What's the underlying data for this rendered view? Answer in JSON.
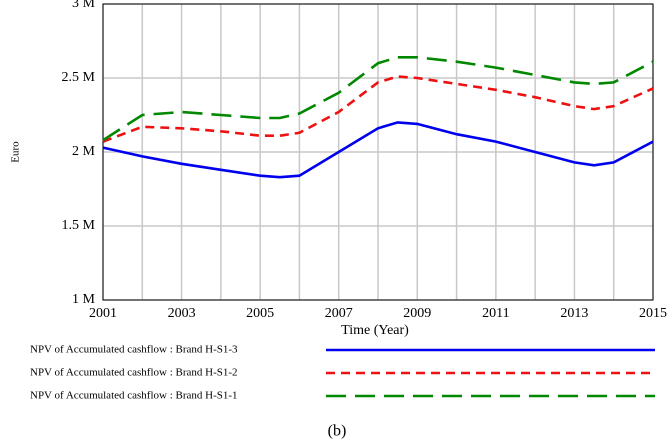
{
  "chart_data": {
    "type": "line",
    "x_label": "Time (Year)",
    "y_label": "Euro",
    "caption": "(b)",
    "x": [
      2001,
      2002,
      2003,
      2004,
      2005,
      2005.5,
      2006,
      2007,
      2008,
      2008.5,
      2009,
      2010,
      2011,
      2012,
      2013,
      2013.5,
      2014,
      2015
    ],
    "series": [
      {
        "name": "NPV of Accumulated cashflow : Brand H-S1-3",
        "color": "#0000ee",
        "dash": "solid",
        "values": [
          2030000,
          1970000,
          1920000,
          1880000,
          1840000,
          1830000,
          1840000,
          2000000,
          2160000,
          2200000,
          2190000,
          2120000,
          2070000,
          2000000,
          1930000,
          1910000,
          1930000,
          2070000
        ]
      },
      {
        "name": "NPV of Accumulated cashflow : Brand H-S1-2",
        "color": "#ee1111",
        "dash": "dashed",
        "values": [
          2070000,
          2170000,
          2160000,
          2140000,
          2110000,
          2110000,
          2130000,
          2270000,
          2470000,
          2510000,
          2500000,
          2460000,
          2420000,
          2370000,
          2310000,
          2290000,
          2310000,
          2430000
        ]
      },
      {
        "name": "NPV of Accumulated cashflow : Brand H-S1-1",
        "color": "#008800",
        "dash": "long-dashed",
        "values": [
          2080000,
          2250000,
          2270000,
          2250000,
          2230000,
          2230000,
          2260000,
          2400000,
          2600000,
          2640000,
          2640000,
          2610000,
          2570000,
          2520000,
          2470000,
          2460000,
          2470000,
          2610000
        ]
      }
    ],
    "xlim": [
      2001,
      2015
    ],
    "xticks": [
      2001,
      2003,
      2005,
      2007,
      2009,
      2011,
      2013,
      2015
    ],
    "x_minor_ticks": [
      2002,
      2004,
      2006,
      2008,
      2010,
      2012,
      2014
    ],
    "ylim": [
      1000000,
      3000000
    ],
    "yticks": [
      {
        "value": 1000000,
        "label": "1 M"
      },
      {
        "value": 1500000,
        "label": "1.5 M"
      },
      {
        "value": 2000000,
        "label": "2 M"
      },
      {
        "value": 2500000,
        "label": "2.5 M"
      },
      {
        "value": 3000000,
        "label": "3 M"
      }
    ],
    "grid": true
  }
}
